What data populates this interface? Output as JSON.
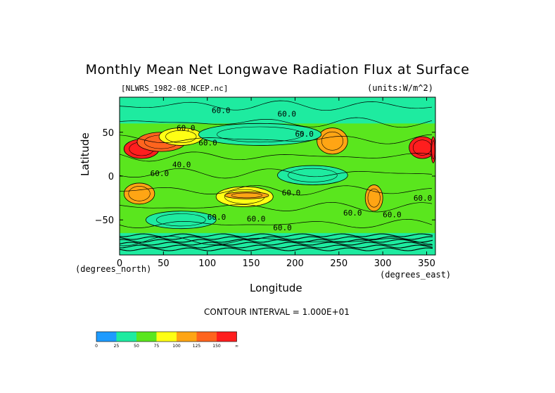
{
  "chart_data": {
    "type": "heatmap",
    "title": "Monthly Mean Net Longwave Radiation Flux at Surface",
    "subtitle": "[NLWRS_1982-08_NCEP.nc]",
    "units_text": "(units:W/m^2)",
    "xlabel": "Longitude",
    "ylabel": "Latitude",
    "x_unit_label": "(degrees_east)",
    "y_unit_label": "(degrees_north)",
    "xlim": [
      0,
      360
    ],
    "ylim": [
      -90,
      90
    ],
    "x_ticks": [
      "0",
      "50",
      "100",
      "150",
      "200",
      "250",
      "300",
      "350"
    ],
    "y_ticks": [
      "50",
      "0",
      "-50"
    ],
    "contour_interval_text": "CONTOUR INTERVAL = 1.000E+01",
    "contour_labels": [
      "60.0",
      "60.0",
      "60.0",
      "60.0",
      "60.0",
      "40.0",
      "60.0",
      "60.0",
      "60.0",
      "60.0",
      "60.0",
      "60.0",
      "60.0",
      "60.0"
    ],
    "colorbar": {
      "ticks": [
        "0",
        "25",
        "50",
        "75",
        "100",
        "125",
        "150",
        "∞"
      ],
      "colors": [
        "#1e9bff",
        "#1eeba0",
        "#5ae61e",
        "#ffff14",
        "#ffa514",
        "#ff641e",
        "#ff1e1e"
      ]
    },
    "regions": [
      {
        "lon": [
          5,
          45
        ],
        "lat": [
          20,
          42
        ],
        "value": 160
      },
      {
        "lon": [
          20,
          75
        ],
        "lat": [
          28,
          50
        ],
        "value": 130
      },
      {
        "lon": [
          45,
          95
        ],
        "lat": [
          35,
          55
        ],
        "value": 85
      },
      {
        "lon": [
          5,
          40
        ],
        "lat": [
          -32,
          -8
        ],
        "value": 105
      },
      {
        "lon": [
          110,
          175
        ],
        "lat": [
          -35,
          -12
        ],
        "value": 95
      },
      {
        "lon": [
          120,
          170
        ],
        "lat": [
          -26,
          -18
        ],
        "value": 120
      },
      {
        "lon": [
          225,
          260
        ],
        "lat": [
          25,
          55
        ],
        "value": 110
      },
      {
        "lon": [
          280,
          300
        ],
        "lat": [
          -40,
          -10
        ],
        "value": 115
      },
      {
        "lon": [
          330,
          360
        ],
        "lat": [
          20,
          45
        ],
        "value": 165
      },
      {
        "lon": [
          355,
          360
        ],
        "lat": [
          15,
          45
        ],
        "value": 170
      },
      {
        "lon": [
          0,
          360
        ],
        "lat": [
          -90,
          -65
        ],
        "value": 40
      },
      {
        "lon": [
          0,
          360
        ],
        "lat": [
          60,
          90
        ],
        "value": 45
      },
      {
        "lon": [
          90,
          230
        ],
        "lat": [
          35,
          60
        ],
        "value": 45
      },
      {
        "lon": [
          30,
          110
        ],
        "lat": [
          -60,
          -40
        ],
        "value": 40
      },
      {
        "lon": [
          180,
          260
        ],
        "lat": [
          -10,
          12
        ],
        "value": 45
      }
    ],
    "background_value": 60
  }
}
